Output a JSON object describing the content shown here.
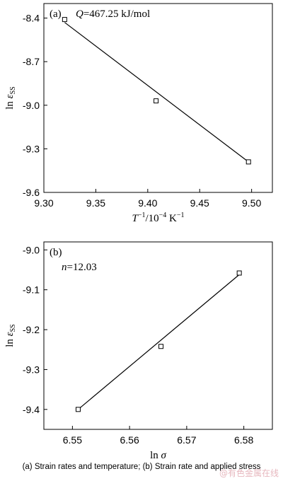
{
  "chart_data": [
    {
      "type": "scatter",
      "panel_label": "(a)",
      "annotation": {
        "symbol": "Q",
        "text": "=467.25 kJ/mol"
      },
      "xlabel": {
        "base": "T",
        "sup1": "−1",
        "mid": "/10",
        "sup2": "−4",
        "tail": " K",
        "sup3": "−1"
      },
      "ylabel": {
        "pre": "ln ",
        "sym": "ε",
        "sub": "SS"
      },
      "xlim": [
        9.3,
        9.52
      ],
      "ylim": [
        -9.6,
        -8.3
      ],
      "xticks": [
        9.3,
        9.35,
        9.4,
        9.45,
        9.5
      ],
      "xtick_labels": [
        "9.30",
        "9.35",
        "9.40",
        "9.45",
        "9.50"
      ],
      "yticks": [
        -9.6,
        -9.3,
        -9.0,
        -8.7,
        -8.4
      ],
      "ytick_labels": [
        "-9.6",
        "-9.3",
        "-9.0",
        "-8.7",
        "-8.4"
      ],
      "points": [
        {
          "x": 9.32,
          "y": -8.41
        },
        {
          "x": 9.408,
          "y": -8.97
        },
        {
          "x": 9.497,
          "y": -9.39
        }
      ],
      "fit_line": {
        "x": [
          9.32,
          9.497
        ],
        "y": [
          -8.43,
          -9.39
        ]
      }
    },
    {
      "type": "scatter",
      "panel_label": "(b)",
      "annotation": {
        "symbol": "n",
        "text": "=12.03"
      },
      "xlabel": {
        "pre": "ln ",
        "sym": "σ"
      },
      "ylabel": {
        "pre": "ln ",
        "sym": "ε",
        "sub": "SS"
      },
      "xlim": [
        6.545,
        6.585
      ],
      "ylim": [
        -9.45,
        -8.98
      ],
      "xticks": [
        6.55,
        6.56,
        6.57,
        6.58
      ],
      "xtick_labels": [
        "6.55",
        "6.56",
        "6.57",
        "6.58"
      ],
      "yticks": [
        -9.4,
        -9.3,
        -9.2,
        -9.1,
        -9.0
      ],
      "ytick_labels": [
        "-9.4",
        "-9.3",
        "-9.2",
        "-9.1",
        "-9.0"
      ],
      "points": [
        {
          "x": 6.551,
          "y": -9.4
        },
        {
          "x": 6.5655,
          "y": -9.242
        },
        {
          "x": 6.5792,
          "y": -9.058
        }
      ],
      "fit_line": {
        "x": [
          6.551,
          6.5792
        ],
        "y": [
          -9.4,
          -9.062
        ]
      }
    }
  ],
  "caption": "(a) Strain rates and temperature; (b) Strain rate and applied stress",
  "watermark": "@有色金属在线"
}
